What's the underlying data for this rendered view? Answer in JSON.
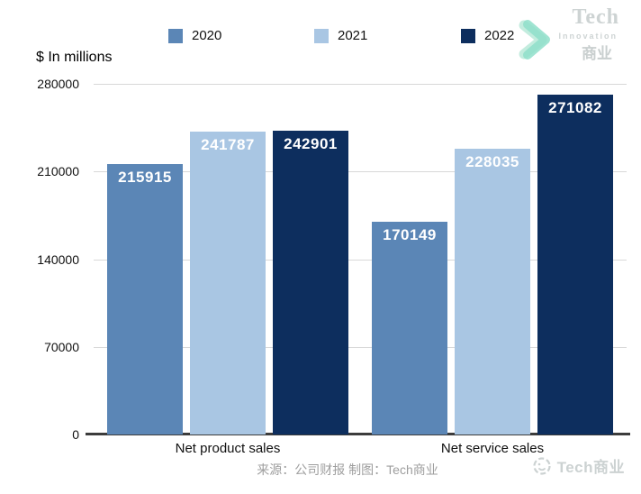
{
  "chart_data": {
    "type": "bar",
    "title": "",
    "ylabel": "$ In millions",
    "xlabel": "",
    "categories": [
      "Net product sales",
      "Net service sales"
    ],
    "series": [
      {
        "name": "2020",
        "color": "#5b86b6",
        "values": [
          215915,
          170149
        ]
      },
      {
        "name": "2021",
        "color": "#a9c6e3",
        "values": [
          241787,
          228035
        ]
      },
      {
        "name": "2022",
        "color": "#0d2e5e",
        "values": [
          242901,
          271082
        ]
      }
    ],
    "ylim": [
      0,
      280000
    ],
    "yticks": [
      0,
      70000,
      140000,
      210000,
      280000
    ],
    "grid": true,
    "legend_position": "top",
    "value_labels": "inside-top",
    "value_label_color": "#ffffff"
  },
  "colors": {
    "gridline": "#d8d8d8",
    "axisline": "#3c3c3c",
    "chevron": "#8fdfca",
    "chevron_light": "#c3ecde",
    "watermark_gray": "#ccd2d2"
  },
  "logo": {
    "name": "Tech",
    "subtitle": "Innovation",
    "cn": "商业"
  },
  "footer": {
    "source_text": "来源：公司财报 制图：Tech商业",
    "watermark_text": "Tech商业"
  }
}
